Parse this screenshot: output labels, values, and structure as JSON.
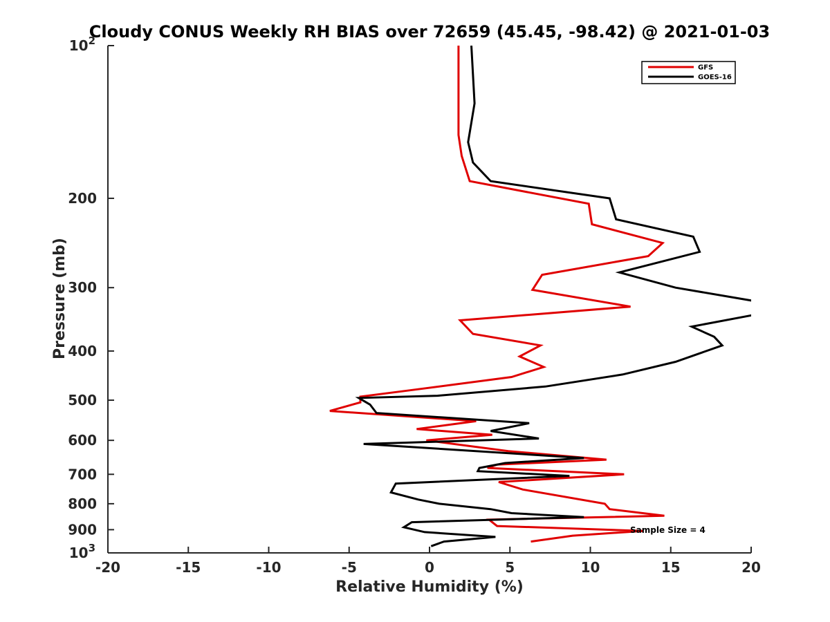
{
  "chart_data": {
    "type": "line",
    "title": "Cloudy CONUS Weekly RH BIAS over 72659 (45.45, -98.42) @ 2021-01-03",
    "xlabel": "Relative Humidity (%)",
    "ylabel": "Pressure (mb)",
    "xlim": [
      -20,
      20
    ],
    "ylim": [
      100,
      1000
    ],
    "y_scale": "log",
    "y_reversed": true,
    "x_ticks": [
      "-20",
      "-15",
      "-10",
      "-5",
      "0",
      "5",
      "10",
      "15",
      "20"
    ],
    "x_tick_values": [
      -20,
      -15,
      -10,
      -5,
      0,
      5,
      10,
      15,
      20
    ],
    "y_ticks": [
      {
        "value": 100,
        "base": "10",
        "exp": "2"
      },
      {
        "value": 200,
        "label": "200"
      },
      {
        "value": 300,
        "label": "300"
      },
      {
        "value": 400,
        "label": "400"
      },
      {
        "value": 500,
        "label": "500"
      },
      {
        "value": 600,
        "label": "600"
      },
      {
        "value": 700,
        "label": "700"
      },
      {
        "value": 800,
        "label": "800"
      },
      {
        "value": 900,
        "label": "900"
      },
      {
        "value": 1000,
        "base": "10",
        "exp": "3"
      }
    ],
    "grid": false,
    "legend_position": "top-right",
    "annotation": "Sample Size = 4",
    "series": [
      {
        "name": "GFS",
        "color": "#e00000",
        "points": [
          [
            1.8,
            100
          ],
          [
            1.8,
            125
          ],
          [
            1.8,
            150
          ],
          [
            2.0,
            165
          ],
          [
            2.5,
            185
          ],
          [
            9.9,
            205
          ],
          [
            10.1,
            225
          ],
          [
            14.5,
            245
          ],
          [
            13.6,
            260
          ],
          [
            7.0,
            283
          ],
          [
            6.4,
            303
          ],
          [
            12.5,
            327
          ],
          [
            1.9,
            348
          ],
          [
            2.7,
            370
          ],
          [
            6.9,
            390
          ],
          [
            5.6,
            410
          ],
          [
            7.1,
            430
          ],
          [
            5.1,
            450
          ],
          [
            -1.2,
            478
          ],
          [
            -4.3,
            492
          ],
          [
            -4.3,
            505
          ],
          [
            -6.2,
            525
          ],
          [
            2.9,
            550
          ],
          [
            -0.8,
            570
          ],
          [
            3.9,
            585
          ],
          [
            -0.2,
            600
          ],
          [
            4.9,
            630
          ],
          [
            11.0,
            655
          ],
          [
            4.2,
            670
          ],
          [
            3.6,
            680
          ],
          [
            12.1,
            700
          ],
          [
            4.3,
            725
          ],
          [
            5.8,
            750
          ],
          [
            10.9,
            800
          ],
          [
            11.2,
            820
          ],
          [
            14.6,
            845
          ],
          [
            3.7,
            860
          ],
          [
            4.2,
            885
          ],
          [
            13.3,
            905
          ],
          [
            8.9,
            925
          ],
          [
            6.3,
            950
          ]
        ]
      },
      {
        "name": "GOES-16",
        "color": "#000000",
        "points": [
          [
            2.6,
            100
          ],
          [
            2.8,
            130
          ],
          [
            2.4,
            155
          ],
          [
            2.7,
            170
          ],
          [
            3.8,
            185
          ],
          [
            11.2,
            200
          ],
          [
            11.6,
            220
          ],
          [
            16.4,
            238
          ],
          [
            16.8,
            255
          ],
          [
            11.8,
            280
          ],
          [
            15.3,
            300
          ],
          [
            20.5,
            320
          ],
          [
            20.5,
            338
          ],
          [
            16.3,
            358
          ],
          [
            17.7,
            375
          ],
          [
            18.2,
            390
          ],
          [
            15.3,
            420
          ],
          [
            12.0,
            445
          ],
          [
            7.2,
            470
          ],
          [
            0.5,
            490
          ],
          [
            -4.4,
            495
          ],
          [
            -3.7,
            510
          ],
          [
            -3.3,
            530
          ],
          [
            6.2,
            555
          ],
          [
            3.8,
            575
          ],
          [
            6.8,
            595
          ],
          [
            -4.1,
            610
          ],
          [
            9.6,
            650
          ],
          [
            4.7,
            665
          ],
          [
            3.1,
            680
          ],
          [
            3.0,
            690
          ],
          [
            8.7,
            705
          ],
          [
            -2.1,
            730
          ],
          [
            -2.4,
            760
          ],
          [
            -0.7,
            785
          ],
          [
            0.6,
            800
          ],
          [
            3.8,
            820
          ],
          [
            5.1,
            835
          ],
          [
            9.6,
            850
          ],
          [
            -1.1,
            870
          ],
          [
            -1.6,
            890
          ],
          [
            -0.3,
            910
          ],
          [
            4.1,
            930
          ],
          [
            0.9,
            950
          ],
          [
            0.1,
            970
          ]
        ]
      }
    ]
  }
}
